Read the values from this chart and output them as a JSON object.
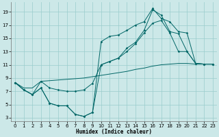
{
  "xlabel": "Humidex (Indice chaleur)",
  "bg_color": "#cce8e8",
  "grid_color": "#99cccc",
  "line_color": "#006666",
  "ylim": [
    2.5,
    20.5
  ],
  "xlim": [
    -0.5,
    23.5
  ],
  "yticks": [
    3,
    5,
    7,
    9,
    11,
    13,
    15,
    17,
    19
  ],
  "xticks": [
    0,
    1,
    2,
    3,
    4,
    5,
    6,
    7,
    8,
    9,
    10,
    11,
    12,
    13,
    14,
    15,
    16,
    17,
    18,
    19,
    20,
    21,
    22,
    23
  ],
  "series": [
    {
      "x": [
        0,
        1,
        2,
        3,
        4,
        5,
        6,
        7,
        8,
        9,
        10,
        11,
        12,
        13,
        14,
        15,
        16,
        17,
        18,
        19,
        20,
        21,
        22,
        23
      ],
      "y": [
        8.3,
        7.5,
        7.5,
        8.5,
        8.6,
        8.7,
        8.8,
        8.9,
        9.0,
        9.2,
        9.4,
        9.6,
        9.8,
        10.0,
        10.3,
        10.5,
        10.8,
        11.0,
        11.1,
        11.2,
        11.2,
        11.1,
        11.1,
        11.1
      ],
      "marker": false
    },
    {
      "x": [
        0,
        1,
        2,
        3,
        4,
        5,
        6,
        7,
        8,
        9,
        10,
        11,
        12,
        13,
        14,
        15,
        16,
        17,
        18,
        19,
        20,
        21,
        22,
        23
      ],
      "y": [
        8.3,
        7.2,
        6.5,
        7.5,
        5.2,
        4.8,
        4.8,
        3.5,
        3.2,
        3.8,
        14.5,
        15.3,
        15.5,
        16.2,
        17.0,
        17.5,
        19.5,
        18.0,
        17.5,
        16.0,
        15.8,
        11.2,
        11.1,
        11.1
      ],
      "marker": true
    },
    {
      "x": [
        0,
        1,
        2,
        3,
        4,
        5,
        6,
        7,
        8,
        9,
        10,
        11,
        12,
        13,
        14,
        15,
        16,
        17,
        18,
        19,
        20,
        21,
        22,
        23
      ],
      "y": [
        8.3,
        7.2,
        6.5,
        8.5,
        7.5,
        7.2,
        7.0,
        7.0,
        7.2,
        8.2,
        11.0,
        11.5,
        12.0,
        13.0,
        14.2,
        15.8,
        17.3,
        17.7,
        15.8,
        13.0,
        13.0,
        11.2,
        11.1,
        11.1
      ],
      "marker": true
    },
    {
      "x": [
        0,
        1,
        2,
        3,
        4,
        5,
        6,
        7,
        8,
        9,
        10,
        11,
        12,
        13,
        14,
        15,
        16,
        17,
        18,
        19,
        20,
        21,
        22,
        23
      ],
      "y": [
        8.3,
        7.2,
        6.5,
        7.5,
        5.2,
        4.8,
        4.8,
        3.5,
        3.2,
        3.8,
        11.0,
        11.5,
        12.0,
        13.5,
        14.4,
        16.2,
        19.3,
        18.5,
        16.0,
        15.7,
        13.0,
        11.2,
        11.1,
        11.1
      ],
      "marker": true
    }
  ]
}
